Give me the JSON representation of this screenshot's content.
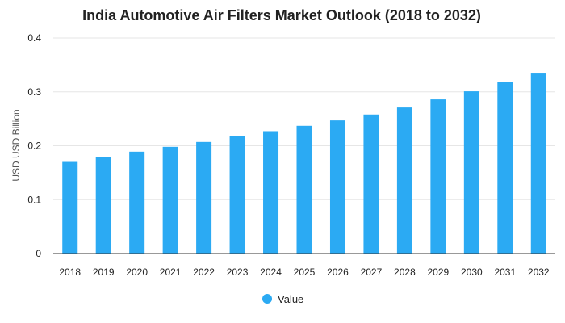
{
  "chart_data": {
    "type": "bar",
    "title": "India Automotive Air Filters Market Outlook (2018 to 2032)",
    "ylabel": "USD USD Billion",
    "xlabel": "",
    "categories": [
      "2018",
      "2019",
      "2020",
      "2021",
      "2022",
      "2023",
      "2024",
      "2025",
      "2026",
      "2027",
      "2028",
      "2029",
      "2030",
      "2031",
      "2032"
    ],
    "series": [
      {
        "name": "Value",
        "values": [
          0.17,
          0.179,
          0.189,
          0.198,
          0.207,
          0.218,
          0.227,
          0.237,
          0.247,
          0.258,
          0.271,
          0.286,
          0.301,
          0.318,
          0.334
        ]
      }
    ],
    "ylim": [
      0,
      0.4
    ],
    "yticks": [
      "0",
      "0.1",
      "0.2",
      "0.3",
      "0.4"
    ],
    "grid": true,
    "legend_position": "bottom-center",
    "colors": {
      "bar": "#2BAAF3",
      "grid": "#e6e6e6",
      "axis": "#333333"
    }
  }
}
